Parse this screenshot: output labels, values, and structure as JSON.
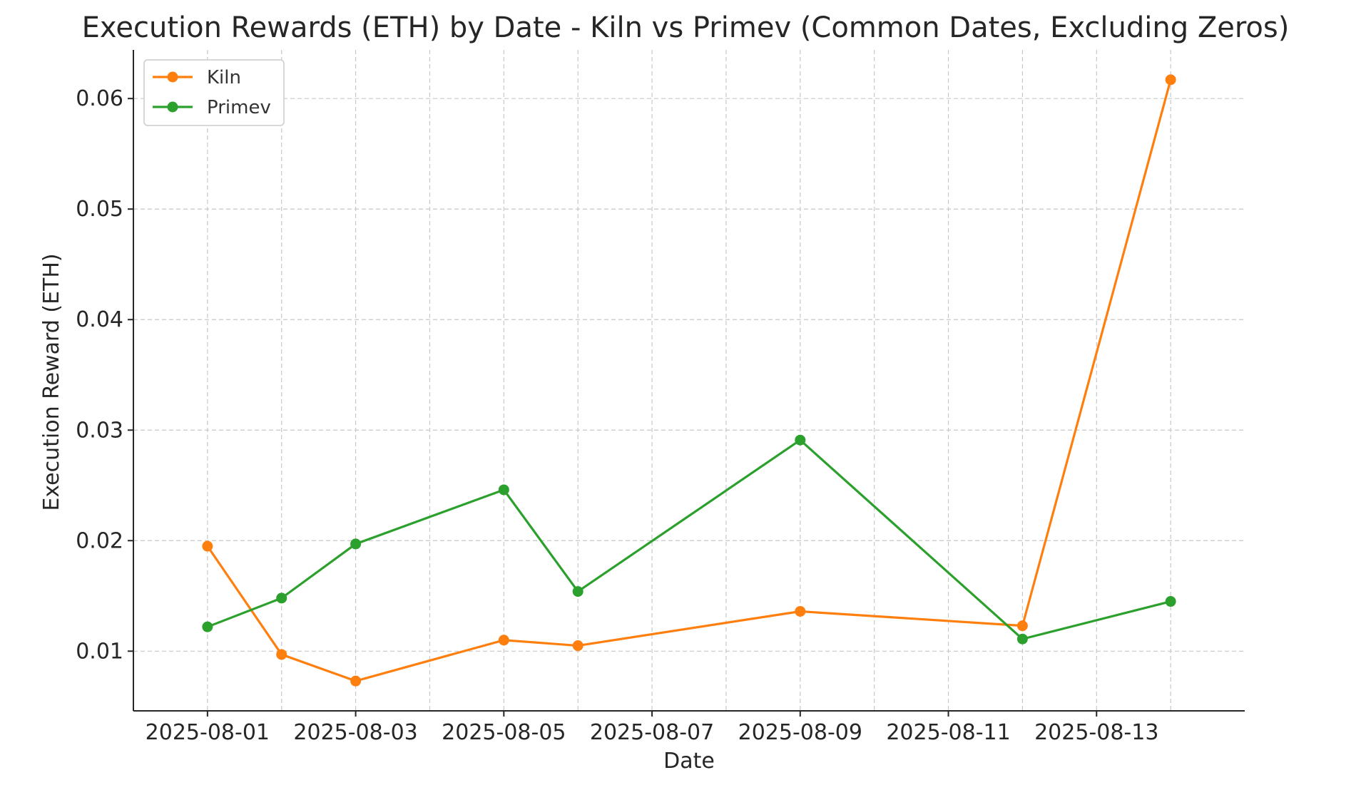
{
  "chart_data": {
    "type": "line",
    "title": "Execution Rewards (ETH) by Date - Kiln vs Primev (Common Dates, Excluding Zeros)",
    "xlabel": "Date",
    "ylabel": "Execution Reward (ETH)",
    "x_ticks": [
      "2025-08-01",
      "2025-08-03",
      "2025-08-05",
      "2025-08-07",
      "2025-08-09",
      "2025-08-11",
      "2025-08-13"
    ],
    "y_ticks": [
      "0.01",
      "0.02",
      "0.03",
      "0.04",
      "0.05",
      "0.06"
    ],
    "xlim": [
      "2025-07-31",
      "2025-08-15"
    ],
    "ylim": [
      0.0046,
      0.0644
    ],
    "grid": true,
    "legend_position": "top-left",
    "x": [
      "2025-08-01",
      "2025-08-02",
      "2025-08-03",
      "2025-08-05",
      "2025-08-06",
      "2025-08-09",
      "2025-08-12",
      "2025-08-14"
    ],
    "series": [
      {
        "name": "Kiln",
        "color": "#ff7f0e",
        "values": [
          0.0195,
          0.0097,
          0.0073,
          0.011,
          0.0105,
          0.0136,
          0.0123,
          0.0617
        ]
      },
      {
        "name": "Primev",
        "color": "#2ca02c",
        "values": [
          0.0122,
          0.0148,
          0.0197,
          0.0246,
          0.0154,
          0.0291,
          0.0111,
          0.0145
        ]
      }
    ]
  }
}
